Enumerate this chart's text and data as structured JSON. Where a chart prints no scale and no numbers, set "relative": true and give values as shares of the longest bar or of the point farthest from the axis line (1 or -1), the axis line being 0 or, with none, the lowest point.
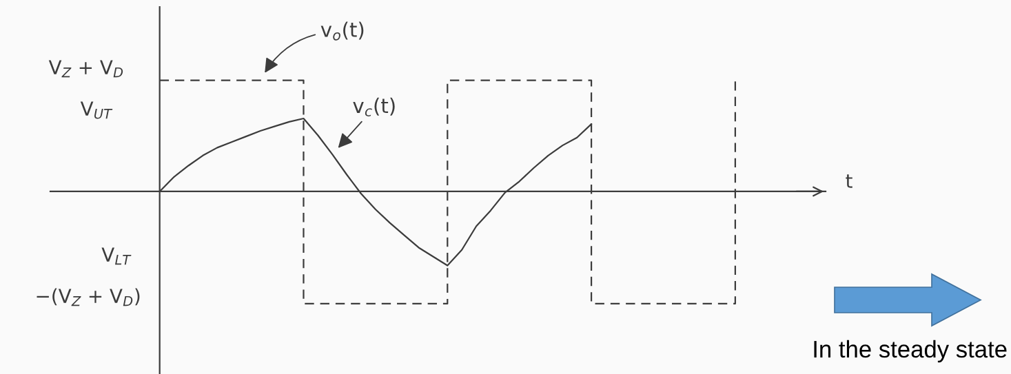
{
  "chart_data": {
    "type": "line",
    "relative": true,
    "legend": false,
    "categories": [
      null,
      null,
      null,
      null,
      null,
      null,
      null,
      null,
      null,
      null,
      null,
      null,
      null,
      null,
      null,
      null,
      null,
      null,
      null,
      null,
      null,
      null,
      null,
      null,
      null,
      null,
      null,
      null,
      null,
      null,
      null,
      null,
      null,
      null,
      null,
      null,
      null,
      null,
      null,
      null,
      null
    ],
    "series": [
      {
        "name": "v$_{o}$(t)",
        "type": "step",
        "color": "#3c3c3c",
        "line_style": "dashed",
        "values": [
          0.99,
          0.99,
          0.99,
          0.99,
          0.99,
          0.99,
          0.99,
          0.99,
          0.99,
          0.99,
          -1,
          -1,
          -1,
          -1,
          -1,
          -1,
          -1,
          -1,
          -1,
          -1,
          0.99,
          0.99,
          0.99,
          0.99,
          0.99,
          0.99,
          0.99,
          0.99,
          0.99,
          0.99,
          -1,
          -1,
          -1,
          -1,
          -1,
          -1,
          -1,
          -1,
          -1,
          -1,
          0.98
        ]
      },
      {
        "name": "v$_{c}$(t)",
        "color": "#3c3c3c",
        "line_style": "solid",
        "values": [
          0,
          0.13,
          0.23,
          0.32,
          0.39,
          0.44,
          0.49,
          0.54,
          0.58,
          0.62,
          0.65,
          0.5,
          0.33,
          0.15,
          -0.02,
          -0.16,
          -0.28,
          -0.39,
          -0.5,
          -0.58,
          -0.66,
          -0.52,
          -0.31,
          -0.17,
          -0.01,
          0.09,
          0.21,
          0.32,
          0.41,
          0.48,
          0.6,
          null,
          null,
          null,
          null,
          null,
          null,
          null,
          null,
          null,
          null
        ]
      }
    ],
    "annotations": [
      "V$_{Z}$ + V$_{D}$",
      "V$_{UT}$",
      "V$_{LT}$",
      "−(V$_{Z}$ + V$_{D}$)",
      "t",
      "In the steady state"
    ]
  }
}
